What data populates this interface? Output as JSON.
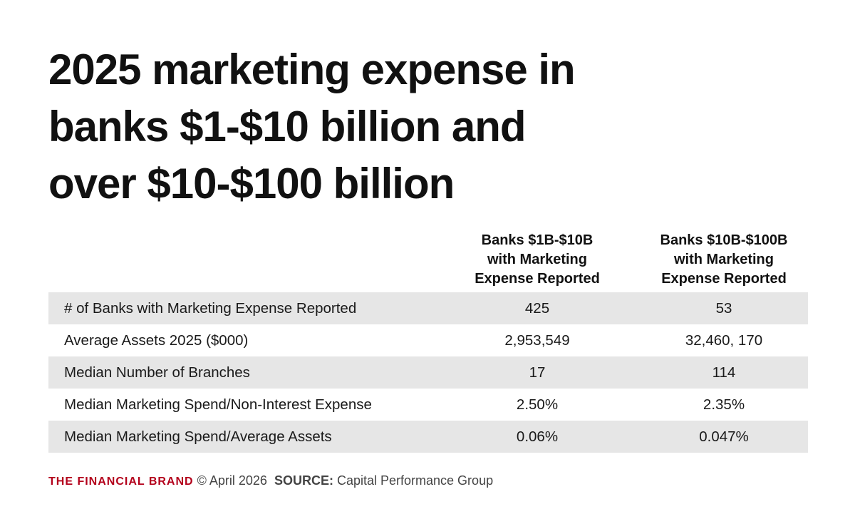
{
  "title_lines": [
    "2025 marketing expense in",
    "banks $1-$10 billion and",
    "over $10-$100 billion"
  ],
  "chart_data": {
    "type": "table",
    "columns": [
      {
        "lines": [
          "Banks $1B-$10B",
          "with Marketing",
          "Expense Reported"
        ]
      },
      {
        "lines": [
          "Banks $10B-$100B",
          "with Marketing",
          "Expense Reported"
        ]
      }
    ],
    "rows": [
      {
        "label": "# of Banks with Marketing Expense Reported",
        "values": [
          "425",
          "53"
        ]
      },
      {
        "label": "Average Assets 2025 ($000)",
        "values": [
          "2,953,549",
          "32,460, 170"
        ]
      },
      {
        "label": "Median Number of Branches",
        "values": [
          "17",
          "114"
        ]
      },
      {
        "label": "Median Marketing Spend/Non-Interest Expense",
        "values": [
          "2.50%",
          "2.35%"
        ]
      },
      {
        "label": "Median Marketing Spend/Average Assets",
        "values": [
          "0.06%",
          "0.047%"
        ]
      }
    ]
  },
  "footer": {
    "brand": "THE FINANCIAL BRAND",
    "copyright": "© April 2026",
    "source_label": "SOURCE:",
    "source": "Capital Performance Group"
  },
  "colors": {
    "brand_red": "#b3001b",
    "row_shade": "#e6e6e6",
    "text": "#111111"
  }
}
